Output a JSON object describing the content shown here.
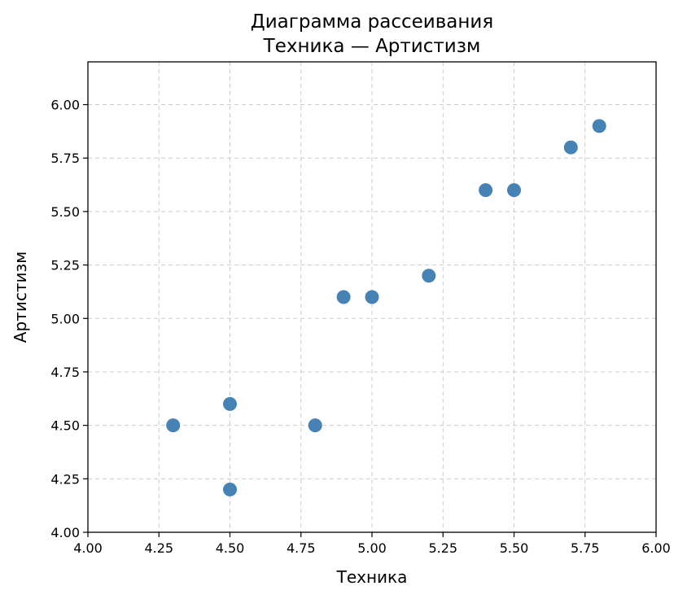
{
  "chart_data": {
    "type": "scatter",
    "title_lines": [
      "Диаграмма рассеивания",
      "Техника — Артистизм"
    ],
    "xlabel": "Техника",
    "ylabel": "Артистизм",
    "xlim": [
      4.0,
      6.0
    ],
    "ylim": [
      4.0,
      6.2
    ],
    "x_ticks": [
      "4.00",
      "4.25",
      "4.50",
      "4.75",
      "5.00",
      "5.25",
      "5.50",
      "5.75",
      "6.00"
    ],
    "y_ticks": [
      "4.00",
      "4.25",
      "4.50",
      "4.75",
      "5.00",
      "5.25",
      "5.50",
      "5.75",
      "6.00"
    ],
    "grid": true,
    "marker_color": "#4682b4",
    "points": [
      {
        "x": 4.3,
        "y": 4.5
      },
      {
        "x": 4.5,
        "y": 4.6
      },
      {
        "x": 4.5,
        "y": 4.2
      },
      {
        "x": 4.8,
        "y": 4.5
      },
      {
        "x": 4.9,
        "y": 5.1
      },
      {
        "x": 5.0,
        "y": 5.1
      },
      {
        "x": 5.2,
        "y": 5.2
      },
      {
        "x": 5.4,
        "y": 5.6
      },
      {
        "x": 5.5,
        "y": 5.6
      },
      {
        "x": 5.7,
        "y": 5.8
      },
      {
        "x": 5.8,
        "y": 5.9
      }
    ]
  }
}
